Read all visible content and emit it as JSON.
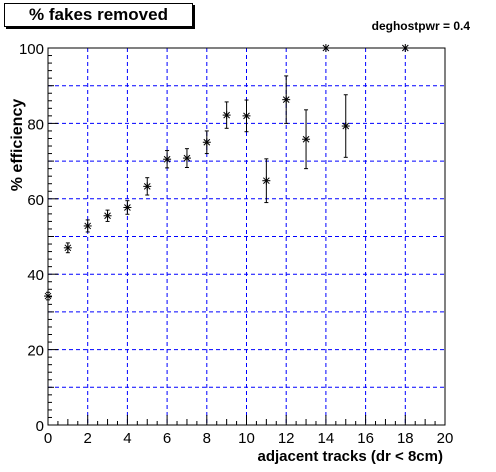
{
  "chart_data": {
    "type": "scatter",
    "title": "% fakes removed",
    "annotation": "deghostpwr = 0.4",
    "xlabel": "adjacent tracks (dr < 8cm)",
    "ylabel": "% efficiency",
    "xlim": [
      0,
      20
    ],
    "ylim": [
      0,
      100
    ],
    "x_ticks": [
      "0",
      "2",
      "4",
      "6",
      "8",
      "10",
      "12",
      "14",
      "16",
      "18",
      "20"
    ],
    "y_ticks": [
      "0",
      "20",
      "40",
      "60",
      "80",
      "100"
    ],
    "grid": true,
    "grid_color": "#0000ff",
    "marker_color": "#000000",
    "points": [
      {
        "x": 0,
        "y": 34.2,
        "err": 1.0
      },
      {
        "x": 1,
        "y": 47.0,
        "err": 1.3
      },
      {
        "x": 2,
        "y": 52.8,
        "err": 1.6
      },
      {
        "x": 3,
        "y": 55.5,
        "err": 1.5
      },
      {
        "x": 4,
        "y": 57.7,
        "err": 1.8
      },
      {
        "x": 5,
        "y": 63.3,
        "err": 2.3
      },
      {
        "x": 6,
        "y": 70.5,
        "err": 2.3
      },
      {
        "x": 7,
        "y": 70.8,
        "err": 2.5
      },
      {
        "x": 8,
        "y": 75.0,
        "err": 3.0
      },
      {
        "x": 9,
        "y": 82.2,
        "err": 3.5
      },
      {
        "x": 10,
        "y": 82.0,
        "err": 4.2
      },
      {
        "x": 11,
        "y": 64.8,
        "err": 5.8
      },
      {
        "x": 12,
        "y": 86.3,
        "err": 6.3
      },
      {
        "x": 13,
        "y": 75.8,
        "err": 7.8
      },
      {
        "x": 14,
        "y": 100.0,
        "err": 0
      },
      {
        "x": 15,
        "y": 79.3,
        "err": 8.3
      },
      {
        "x": 18,
        "y": 100.0,
        "err": 0
      }
    ]
  }
}
